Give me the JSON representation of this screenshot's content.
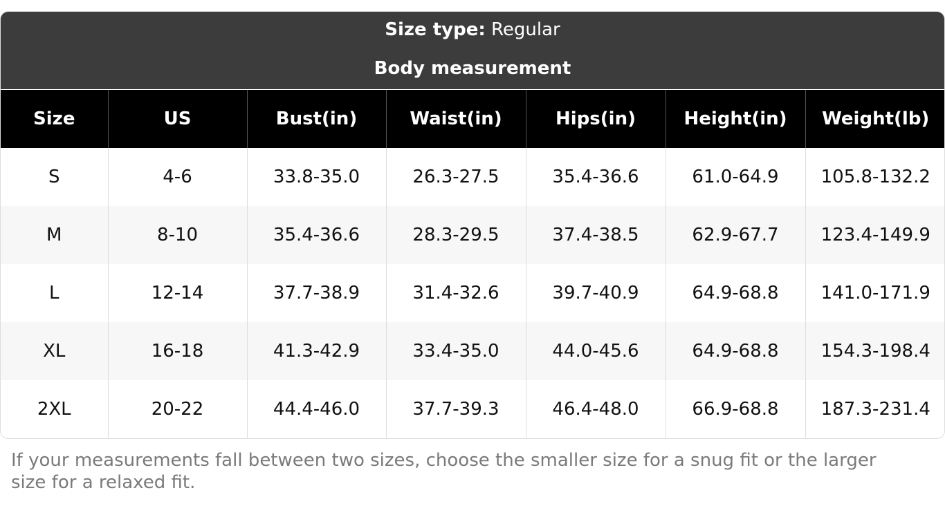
{
  "header": {
    "size_type_label": "Size type:",
    "size_type_value": "Regular",
    "subtitle": "Body measurement"
  },
  "table": {
    "columns": [
      "Size",
      "US",
      "Bust(in)",
      "Waist(in)",
      "Hips(in)",
      "Height(in)",
      "Weight(lb)"
    ],
    "rows": [
      [
        "S",
        "4-6",
        "33.8-35.0",
        "26.3-27.5",
        "35.4-36.6",
        "61.0-64.9",
        "105.8-132.2"
      ],
      [
        "M",
        "8-10",
        "35.4-36.6",
        "28.3-29.5",
        "37.4-38.5",
        "62.9-67.7",
        "123.4-149.9"
      ],
      [
        "L",
        "12-14",
        "37.7-38.9",
        "31.4-32.6",
        "39.7-40.9",
        "64.9-68.8",
        "141.0-171.9"
      ],
      [
        "XL",
        "16-18",
        "41.3-42.9",
        "33.4-35.0",
        "44.0-45.6",
        "64.9-68.8",
        "154.3-198.4"
      ],
      [
        "2XL",
        "20-22",
        "44.4-46.0",
        "37.7-39.3",
        "46.4-48.0",
        "66.9-68.8",
        "187.3-231.4"
      ]
    ]
  },
  "note": "If your measurements fall between two sizes, choose the smaller size for a snug fit or the larger size for a relaxed fit."
}
